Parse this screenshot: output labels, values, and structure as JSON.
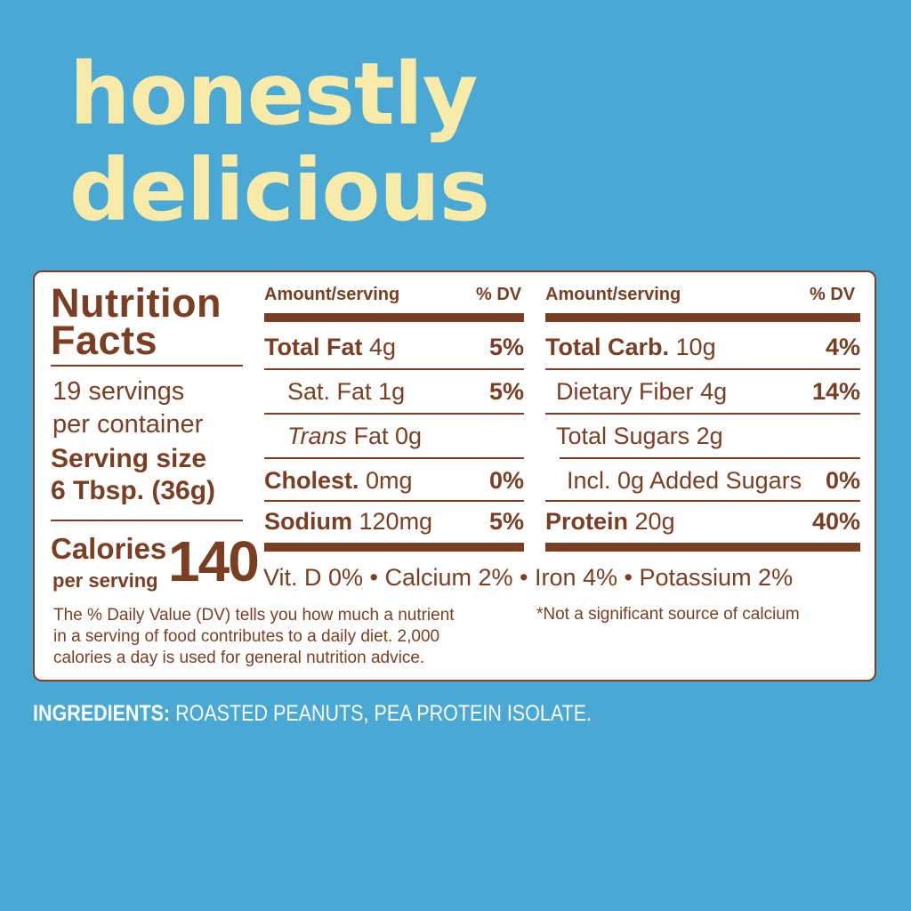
{
  "headline": {
    "line1": "honestly",
    "line2": "delicious"
  },
  "label": {
    "title_line1": "Nutrition",
    "title_line2": "Facts",
    "servings_line1": "19 servings",
    "servings_line2": "per container",
    "serving_size_line1": "Serving size",
    "serving_size_line2": "6 Tbsp. (36g)",
    "calories_label": "Calories",
    "calories_per": "per serving",
    "calories_value": "140",
    "dv_note_line1": "The % Daily Value (DV) tells you how much a nutrient",
    "dv_note_line2": "in a serving of food contributes to a daily diet. 2,000",
    "dv_note_line3": "calories a day is used for general nutrition advice.",
    "col_header_amount": "Amount/serving",
    "col_header_dv": "% DV",
    "left_rows": [
      {
        "name": "Total Fat",
        "amount": "4g",
        "dv": "5%"
      },
      {
        "name": "Sat. Fat",
        "amount": "1g",
        "dv": "5%"
      },
      {
        "name": "Trans",
        "amount": "Fat 0g",
        "dv": ""
      },
      {
        "name": "Cholest.",
        "amount": "0mg",
        "dv": "0%"
      },
      {
        "name": "Sodium",
        "amount": "120mg",
        "dv": "5%"
      }
    ],
    "right_rows": [
      {
        "name": "Total Carb.",
        "amount": "10g",
        "dv": "4%"
      },
      {
        "name": "Dietary Fiber",
        "amount": "4g",
        "dv": "14%"
      },
      {
        "name": "Total Sugars",
        "amount": "2g",
        "dv": ""
      },
      {
        "name": "Incl. 0g Added Sugars",
        "amount": "",
        "dv": "0%"
      },
      {
        "name": "Protein",
        "amount": "20g",
        "dv": "40%"
      }
    ],
    "vitamins": "Vit. D 0% • Calcium 2% • Iron 4% • Potassium 2%",
    "footnote": "*Not a significant source of calcium"
  },
  "ingredients": {
    "label": "INGREDIENTS:",
    "value": " ROASTED PEANUTS, PEA PROTEIN ISOLATE."
  },
  "colors": {
    "background": "#4aa8d4",
    "headline": "#f8eaa8",
    "label_brown": "#7a3e22"
  }
}
